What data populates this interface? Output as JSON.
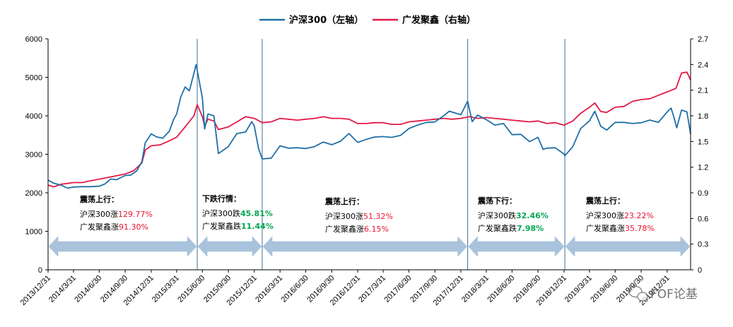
{
  "chart_data": {
    "type": "line",
    "title": "",
    "legend_position": "top",
    "series": [
      {
        "name": "沪深300（左轴）",
        "axis": "left",
        "color": "#1f6fa8",
        "points": [
          [
            "2013-12-31",
            2330
          ],
          [
            "2014-01-20",
            2250
          ],
          [
            "2014-02-15",
            2200
          ],
          [
            "2014-03-10",
            2120
          ],
          [
            "2014-03-31",
            2150
          ],
          [
            "2014-04-30",
            2160
          ],
          [
            "2014-05-30",
            2160
          ],
          [
            "2014-06-30",
            2170
          ],
          [
            "2014-07-20",
            2230
          ],
          [
            "2014-08-10",
            2360
          ],
          [
            "2014-08-30",
            2340
          ],
          [
            "2014-09-30",
            2450
          ],
          [
            "2014-10-20",
            2460
          ],
          [
            "2014-11-10",
            2570
          ],
          [
            "2014-11-28",
            2810
          ],
          [
            "2014-12-10",
            3300
          ],
          [
            "2014-12-31",
            3530
          ],
          [
            "2015-01-20",
            3450
          ],
          [
            "2015-02-10",
            3420
          ],
          [
            "2015-03-05",
            3600
          ],
          [
            "2015-03-20",
            3900
          ],
          [
            "2015-03-31",
            4050
          ],
          [
            "2015-04-15",
            4500
          ],
          [
            "2015-04-30",
            4750
          ],
          [
            "2015-05-15",
            4650
          ],
          [
            "2015-06-08",
            5330
          ],
          [
            "2015-06-30",
            4470
          ],
          [
            "2015-07-08",
            3660
          ],
          [
            "2015-07-20",
            4050
          ],
          [
            "2015-08-10",
            4000
          ],
          [
            "2015-08-26",
            3020
          ],
          [
            "2015-09-30",
            3200
          ],
          [
            "2015-10-30",
            3540
          ],
          [
            "2015-11-30",
            3580
          ],
          [
            "2015-12-22",
            3850
          ],
          [
            "2015-12-31",
            3730
          ],
          [
            "2016-01-15",
            3150
          ],
          [
            "2016-01-28",
            2880
          ],
          [
            "2016-02-29",
            2900
          ],
          [
            "2016-03-31",
            3220
          ],
          [
            "2016-04-30",
            3160
          ],
          [
            "2016-05-31",
            3170
          ],
          [
            "2016-06-30",
            3150
          ],
          [
            "2016-07-31",
            3200
          ],
          [
            "2016-08-31",
            3320
          ],
          [
            "2016-09-30",
            3250
          ],
          [
            "2016-10-31",
            3340
          ],
          [
            "2016-11-30",
            3540
          ],
          [
            "2016-12-31",
            3310
          ],
          [
            "2017-01-31",
            3390
          ],
          [
            "2017-02-28",
            3450
          ],
          [
            "2017-03-31",
            3460
          ],
          [
            "2017-04-30",
            3440
          ],
          [
            "2017-05-31",
            3490
          ],
          [
            "2017-06-30",
            3670
          ],
          [
            "2017-07-31",
            3760
          ],
          [
            "2017-08-31",
            3830
          ],
          [
            "2017-09-30",
            3840
          ],
          [
            "2017-10-31",
            4000
          ],
          [
            "2017-11-20",
            4120
          ],
          [
            "2017-12-31",
            4030
          ],
          [
            "2018-01-24",
            4380
          ],
          [
            "2018-02-09",
            3850
          ],
          [
            "2018-02-28",
            4020
          ],
          [
            "2018-03-31",
            3900
          ],
          [
            "2018-04-30",
            3760
          ],
          [
            "2018-05-31",
            3800
          ],
          [
            "2018-06-30",
            3510
          ],
          [
            "2018-07-31",
            3520
          ],
          [
            "2018-08-31",
            3330
          ],
          [
            "2018-09-30",
            3440
          ],
          [
            "2018-10-18",
            3130
          ],
          [
            "2018-10-31",
            3160
          ],
          [
            "2018-11-30",
            3170
          ],
          [
            "2018-12-31",
            3010
          ],
          [
            "2019-01-03",
            2960
          ],
          [
            "2019-01-31",
            3200
          ],
          [
            "2019-02-28",
            3670
          ],
          [
            "2019-03-31",
            3870
          ],
          [
            "2019-04-19",
            4120
          ],
          [
            "2019-05-10",
            3730
          ],
          [
            "2019-05-31",
            3630
          ],
          [
            "2019-06-30",
            3830
          ],
          [
            "2019-07-31",
            3830
          ],
          [
            "2019-08-31",
            3800
          ],
          [
            "2019-09-30",
            3820
          ],
          [
            "2019-10-31",
            3890
          ],
          [
            "2019-11-30",
            3830
          ],
          [
            "2019-12-31",
            4100
          ],
          [
            "2020-01-14",
            4200
          ],
          [
            "2020-01-23",
            3990
          ],
          [
            "2020-02-03",
            3690
          ],
          [
            "2020-02-20",
            4150
          ],
          [
            "2020-03-10",
            4100
          ],
          [
            "2020-03-23",
            3530
          ]
        ]
      },
      {
        "name": "广发聚鑫（右轴）",
        "axis": "right",
        "color": "#e31a47",
        "points": [
          [
            "2013-12-31",
            0.99
          ],
          [
            "2014-01-20",
            0.97
          ],
          [
            "2014-02-15",
            1.0
          ],
          [
            "2014-03-10",
            1.01
          ],
          [
            "2014-03-31",
            1.02
          ],
          [
            "2014-04-30",
            1.02
          ],
          [
            "2014-05-30",
            1.04
          ],
          [
            "2014-06-30",
            1.06
          ],
          [
            "2014-07-31",
            1.08
          ],
          [
            "2014-08-31",
            1.1
          ],
          [
            "2014-09-30",
            1.12
          ],
          [
            "2014-10-31",
            1.16
          ],
          [
            "2014-11-28",
            1.25
          ],
          [
            "2014-12-10",
            1.4
          ],
          [
            "2014-12-31",
            1.45
          ],
          [
            "2015-01-31",
            1.46
          ],
          [
            "2015-02-28",
            1.5
          ],
          [
            "2015-03-31",
            1.55
          ],
          [
            "2015-04-30",
            1.67
          ],
          [
            "2015-05-31",
            1.8
          ],
          [
            "2015-06-12",
            1.93
          ],
          [
            "2015-06-30",
            1.79
          ],
          [
            "2015-07-08",
            1.68
          ],
          [
            "2015-07-20",
            1.76
          ],
          [
            "2015-08-10",
            1.74
          ],
          [
            "2015-08-26",
            1.64
          ],
          [
            "2015-09-30",
            1.67
          ],
          [
            "2015-10-31",
            1.73
          ],
          [
            "2015-11-30",
            1.79
          ],
          [
            "2015-12-31",
            1.77
          ],
          [
            "2016-01-28",
            1.72
          ],
          [
            "2016-02-29",
            1.73
          ],
          [
            "2016-03-31",
            1.77
          ],
          [
            "2016-04-30",
            1.76
          ],
          [
            "2016-05-31",
            1.75
          ],
          [
            "2016-06-30",
            1.76
          ],
          [
            "2016-07-31",
            1.77
          ],
          [
            "2016-08-31",
            1.79
          ],
          [
            "2016-09-30",
            1.77
          ],
          [
            "2016-10-31",
            1.77
          ],
          [
            "2016-11-30",
            1.76
          ],
          [
            "2016-12-31",
            1.71
          ],
          [
            "2017-01-31",
            1.71
          ],
          [
            "2017-02-28",
            1.72
          ],
          [
            "2017-03-31",
            1.72
          ],
          [
            "2017-04-30",
            1.7
          ],
          [
            "2017-05-31",
            1.7
          ],
          [
            "2017-06-30",
            1.73
          ],
          [
            "2017-07-31",
            1.74
          ],
          [
            "2017-08-31",
            1.75
          ],
          [
            "2017-09-30",
            1.76
          ],
          [
            "2017-10-31",
            1.77
          ],
          [
            "2017-11-30",
            1.76
          ],
          [
            "2017-12-31",
            1.77
          ],
          [
            "2018-01-31",
            1.79
          ],
          [
            "2018-02-28",
            1.77
          ],
          [
            "2018-03-31",
            1.78
          ],
          [
            "2018-04-30",
            1.77
          ],
          [
            "2018-05-31",
            1.76
          ],
          [
            "2018-06-30",
            1.75
          ],
          [
            "2018-07-31",
            1.74
          ],
          [
            "2018-08-31",
            1.73
          ],
          [
            "2018-09-30",
            1.74
          ],
          [
            "2018-10-31",
            1.71
          ],
          [
            "2018-11-30",
            1.72
          ],
          [
            "2018-12-31",
            1.69
          ],
          [
            "2019-01-31",
            1.74
          ],
          [
            "2019-02-28",
            1.83
          ],
          [
            "2019-03-31",
            1.9
          ],
          [
            "2019-04-19",
            1.95
          ],
          [
            "2019-05-10",
            1.85
          ],
          [
            "2019-05-31",
            1.84
          ],
          [
            "2019-06-30",
            1.9
          ],
          [
            "2019-07-31",
            1.91
          ],
          [
            "2019-08-31",
            1.97
          ],
          [
            "2019-09-30",
            1.99
          ],
          [
            "2019-10-31",
            2.0
          ],
          [
            "2019-11-30",
            2.04
          ],
          [
            "2019-12-31",
            2.08
          ],
          [
            "2020-01-31",
            2.12
          ],
          [
            "2020-02-20",
            2.3
          ],
          [
            "2020-03-10",
            2.31
          ],
          [
            "2020-03-23",
            2.22
          ]
        ]
      }
    ],
    "y_left": {
      "min": 0,
      "max": 6000,
      "ticks": [
        "0",
        "1000",
        "2000",
        "3000",
        "4000",
        "5000",
        "6000"
      ]
    },
    "y_right": {
      "min": 0,
      "max": 2.7,
      "ticks": [
        "0",
        "0.3",
        "0.6",
        "0.9",
        "1.2",
        "1.5",
        "1.8",
        "2.1",
        "2.4",
        "2.7"
      ]
    },
    "x_range": [
      "2013-12-31",
      "2020-03-23"
    ],
    "x_ticks": [
      "2013/12/31",
      "2014/3/31",
      "2014/6/30",
      "2014/9/30",
      "2014/12/31",
      "2015/3/31",
      "2015/6/30",
      "2015/9/30",
      "2015/12/31",
      "2016/3/31",
      "2016/6/30",
      "2016/9/30",
      "2016/12/31",
      "2017/3/31",
      "2017/6/30",
      "2017/9/30",
      "2017/12/31",
      "2018/3/31",
      "2018/6/30",
      "2018/9/30",
      "2018/12/31",
      "2019/3/31",
      "2019/6/30",
      "2019/9/30",
      "2019/12/31"
    ],
    "dividers": [
      "2015-06-12",
      "2016-01-28",
      "2018-01-24",
      "2019-01-03"
    ],
    "periods": [
      {
        "start": "2013-12-31",
        "end": "2015-06-12",
        "title": "震荡上行：",
        "l1_prefix": "沪深300涨",
        "l1_value": "129.77%",
        "l1_color": "red",
        "l2_prefix": "广发聚鑫涨",
        "l2_value": "91.30%",
        "l2_color": "red"
      },
      {
        "start": "2015-06-12",
        "end": "2016-01-28",
        "title": "下跌行情：",
        "l1_prefix": "沪深300跌",
        "l1_value": "45.81%",
        "l1_color": "green",
        "l2_prefix": "广发聚鑫跌",
        "l2_value": "11.44%",
        "l2_color": "green"
      },
      {
        "start": "2016-01-28",
        "end": "2018-01-24",
        "title": "震荡上行：",
        "l1_prefix": "沪深300涨",
        "l1_value": "51.32%",
        "l1_color": "red",
        "l2_prefix": "广发聚鑫涨",
        "l2_value": "6.15%",
        "l2_color": "red"
      },
      {
        "start": "2018-01-24",
        "end": "2019-01-03",
        "title": "震荡下行：",
        "l1_prefix": "沪深300跌",
        "l1_value": "32.46%",
        "l1_color": "green",
        "l2_prefix": "广发聚鑫跌",
        "l2_value": "7.98%",
        "l2_color": "green"
      },
      {
        "start": "2019-01-03",
        "end": "2020-03-23",
        "title": "震荡上行：",
        "l1_prefix": "沪深300涨",
        "l1_value": "23.22%",
        "l1_color": "red",
        "l2_prefix": "广发聚鑫涨",
        "l2_value": "35.78%",
        "l2_color": "red"
      }
    ],
    "grid": false
  },
  "watermark": {
    "text": "FOF论基",
    "icon": "wechat-icon"
  }
}
